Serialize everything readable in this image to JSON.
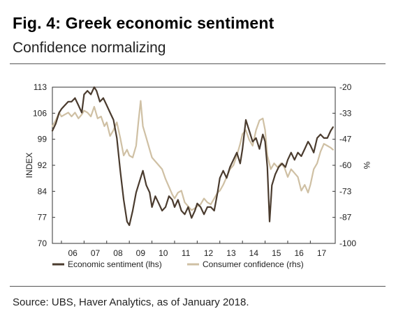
{
  "figure": {
    "title": "Fig. 4: Greek economic sentiment",
    "subtitle": "Confidence normalizing",
    "source": "Source: UBS, Haver Analytics, as of January 2018."
  },
  "colors": {
    "economic_sentiment": "#4a3b2e",
    "consumer_confidence": "#cfc0a4",
    "axis": "#333333"
  },
  "chart_data": {
    "type": "line",
    "xlabel": "",
    "x_tick_labels": [
      "06",
      "07",
      "08",
      "09",
      "10",
      "11",
      "12",
      "13",
      "14",
      "15",
      "16",
      "17"
    ],
    "xlim": [
      2005.6,
      2018.1
    ],
    "ylabel_left": "INDEX",
    "ylim_left": [
      70,
      113
    ],
    "yticks_left": [
      "113",
      "106",
      "99",
      "92",
      "84",
      "77",
      "70"
    ],
    "ylabel_right": "%",
    "ylim_right": [
      -100,
      -20
    ],
    "yticks_right": [
      "-20",
      "-33",
      "-47",
      "-60",
      "-73",
      "-87",
      "-100"
    ],
    "grid": false,
    "legend_position": "bottom",
    "series": [
      {
        "name": "Economic sentiment (lhs)",
        "axis": "left",
        "x": [
          2005.6,
          2005.75,
          2005.9,
          2006.0,
          2006.15,
          2006.3,
          2006.45,
          2006.6,
          2006.75,
          2006.9,
          2007.0,
          2007.15,
          2007.3,
          2007.45,
          2007.55,
          2007.7,
          2007.85,
          2008.0,
          2008.15,
          2008.3,
          2008.45,
          2008.6,
          2008.75,
          2008.9,
          2009.0,
          2009.15,
          2009.3,
          2009.45,
          2009.6,
          2009.75,
          2009.9,
          2010.0,
          2010.15,
          2010.3,
          2010.45,
          2010.6,
          2010.75,
          2010.9,
          2011.0,
          2011.15,
          2011.3,
          2011.45,
          2011.6,
          2011.75,
          2011.9,
          2012.0,
          2012.15,
          2012.3,
          2012.45,
          2012.6,
          2012.75,
          2012.9,
          2013.0,
          2013.15,
          2013.3,
          2013.45,
          2013.6,
          2013.75,
          2013.9,
          2014.0,
          2014.15,
          2014.3,
          2014.45,
          2014.6,
          2014.75,
          2014.9,
          2015.0,
          2015.1,
          2015.2,
          2015.3,
          2015.45,
          2015.6,
          2015.75,
          2015.9,
          2016.0,
          2016.15,
          2016.3,
          2016.45,
          2016.6,
          2016.75,
          2016.9,
          2017.0,
          2017.15,
          2017.3,
          2017.45,
          2017.6,
          2017.75,
          2017.9,
          2018.0
        ],
        "values": [
          101,
          103,
          106,
          107,
          108,
          109,
          109,
          110,
          108,
          106,
          111,
          112,
          111,
          113,
          112,
          109,
          110,
          108,
          106,
          104,
          99,
          90,
          82,
          76,
          75,
          79,
          84,
          87,
          90,
          86,
          84,
          80,
          83,
          81,
          79,
          80,
          83,
          82,
          80,
          82,
          79,
          78,
          80,
          77,
          79,
          81,
          80,
          78,
          80,
          80,
          79,
          84,
          88,
          90,
          88,
          91,
          93,
          95,
          92,
          96,
          104,
          101,
          98,
          99,
          96,
          100,
          98,
          91,
          76,
          86,
          89,
          91,
          92,
          91,
          93,
          95,
          93,
          95,
          94,
          96,
          98,
          97,
          95,
          99,
          100,
          99,
          99,
          101,
          102
        ]
      },
      {
        "name": "Consumer confidence (rhs)",
        "axis": "right",
        "x": [
          2005.6,
          2005.75,
          2005.9,
          2006.0,
          2006.15,
          2006.3,
          2006.45,
          2006.6,
          2006.75,
          2006.9,
          2007.0,
          2007.15,
          2007.3,
          2007.45,
          2007.6,
          2007.75,
          2007.9,
          2008.0,
          2008.15,
          2008.3,
          2008.45,
          2008.6,
          2008.75,
          2008.9,
          2009.0,
          2009.15,
          2009.3,
          2009.4,
          2009.5,
          2009.6,
          2009.75,
          2009.9,
          2010.0,
          2010.15,
          2010.3,
          2010.45,
          2010.6,
          2010.75,
          2010.9,
          2011.0,
          2011.15,
          2011.3,
          2011.45,
          2011.6,
          2011.75,
          2011.9,
          2012.0,
          2012.15,
          2012.3,
          2012.45,
          2012.6,
          2012.75,
          2012.9,
          2013.0,
          2013.15,
          2013.3,
          2013.45,
          2013.6,
          2013.75,
          2013.9,
          2014.0,
          2014.15,
          2014.3,
          2014.45,
          2014.6,
          2014.75,
          2014.9,
          2015.0,
          2015.1,
          2015.25,
          2015.4,
          2015.55,
          2015.7,
          2015.85,
          2016.0,
          2016.15,
          2016.3,
          2016.45,
          2016.6,
          2016.75,
          2016.9,
          2017.0,
          2017.15,
          2017.3,
          2017.45,
          2017.6,
          2017.75,
          2017.9,
          2018.0
        ],
        "values": [
          -40,
          -37,
          -33,
          -35,
          -34,
          -33,
          -35,
          -33,
          -36,
          -34,
          -32,
          -33,
          -35,
          -30,
          -36,
          -35,
          -40,
          -38,
          -45,
          -42,
          -38,
          -46,
          -55,
          -52,
          -55,
          -56,
          -50,
          -38,
          -27,
          -40,
          -46,
          -52,
          -56,
          -58,
          -60,
          -62,
          -67,
          -71,
          -75,
          -77,
          -74,
          -73,
          -79,
          -81,
          -83,
          -82,
          -81,
          -80,
          -77,
          -79,
          -80,
          -77,
          -74,
          -73,
          -70,
          -66,
          -62,
          -60,
          -55,
          -49,
          -44,
          -42,
          -47,
          -50,
          -42,
          -37,
          -36,
          -42,
          -55,
          -62,
          -59,
          -61,
          -59,
          -61,
          -66,
          -62,
          -64,
          -66,
          -73,
          -70,
          -74,
          -70,
          -62,
          -59,
          -53,
          -49,
          -50,
          -51,
          -52
        ]
      }
    ]
  }
}
